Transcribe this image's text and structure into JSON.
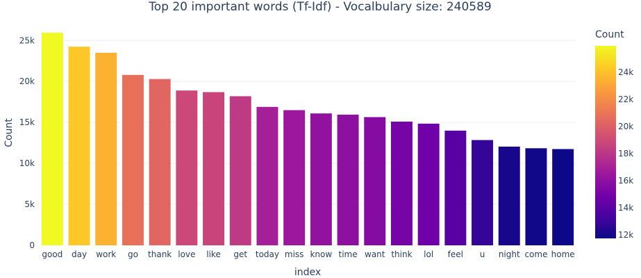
{
  "chart_data": {
    "type": "bar",
    "title": "Top 20 important words (Tf-Idf) - Vocalbulary size: 240589",
    "xlabel": "index",
    "ylabel": "Count",
    "categories": [
      "good",
      "day",
      "work",
      "go",
      "thank",
      "love",
      "like",
      "get",
      "today",
      "miss",
      "know",
      "time",
      "want",
      "think",
      "lol",
      "feel",
      "u",
      "night",
      "come",
      "home"
    ],
    "values": [
      25950,
      24250,
      23500,
      20800,
      20300,
      18900,
      18700,
      18200,
      16900,
      16500,
      16100,
      15950,
      15650,
      15100,
      14850,
      14000,
      12850,
      12050,
      11850,
      11750
    ],
    "ylim": [
      0,
      27400
    ],
    "yticks": [
      0,
      5000,
      10000,
      15000,
      20000,
      25000
    ],
    "ytick_labels": [
      "0",
      "5k",
      "10k",
      "15k",
      "20k",
      "25k"
    ],
    "grid": true,
    "colorbar": {
      "title": "Count",
      "range": [
        11750,
        25950
      ],
      "ticks": [
        12000,
        14000,
        16000,
        18000,
        20000,
        22000,
        24000
      ],
      "tick_labels": [
        "12k",
        "14k",
        "16k",
        "18k",
        "20k",
        "22k",
        "24k"
      ],
      "colorscale": [
        "#0d0887",
        "#46039f",
        "#7201a8",
        "#9c179e",
        "#bd3786",
        "#d8576b",
        "#ed7953",
        "#fb9f3a",
        "#fdca26",
        "#f0f921"
      ]
    }
  }
}
